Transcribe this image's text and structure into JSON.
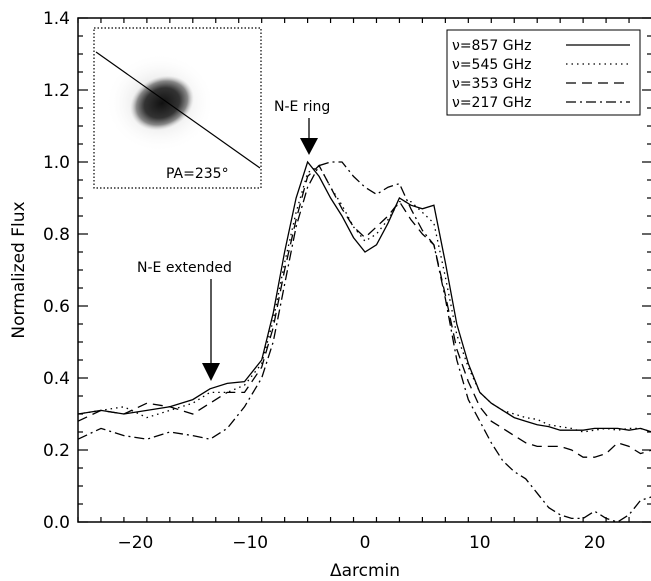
{
  "chart_data": {
    "type": "line",
    "xlabel": "Δarcmin",
    "ylabel": "Normalized Flux",
    "xlim": [
      -25,
      25
    ],
    "ylim": [
      0.0,
      1.4
    ],
    "xticks": [
      -20,
      -10,
      0,
      10,
      20
    ],
    "yticks": [
      0.0,
      0.2,
      0.4,
      0.6,
      0.8,
      1.0,
      1.2,
      1.4
    ],
    "grid": false,
    "legend_position": "top-right",
    "series": [
      {
        "name": "ν=857 GHz",
        "style": "solid",
        "x": [
          -25,
          -23,
          -21,
          -19,
          -17,
          -15,
          -13.5,
          -12,
          -10.5,
          -9,
          -8,
          -7,
          -6,
          -5,
          -4,
          -3,
          -2,
          -1,
          0,
          1,
          2,
          3,
          4,
          5,
          6,
          7,
          8,
          9,
          10,
          11,
          12,
          13,
          14,
          15,
          16,
          17,
          18,
          19,
          20,
          21,
          22,
          23,
          24,
          25
        ],
        "y": [
          0.3,
          0.31,
          0.3,
          0.31,
          0.32,
          0.34,
          0.37,
          0.385,
          0.39,
          0.45,
          0.58,
          0.75,
          0.9,
          1.0,
          0.96,
          0.9,
          0.85,
          0.79,
          0.75,
          0.77,
          0.83,
          0.9,
          0.88,
          0.87,
          0.88,
          0.72,
          0.55,
          0.44,
          0.36,
          0.33,
          0.31,
          0.29,
          0.28,
          0.27,
          0.265,
          0.255,
          0.255,
          0.255,
          0.26,
          0.26,
          0.26,
          0.255,
          0.26,
          0.25
        ]
      },
      {
        "name": "ν=545 GHz",
        "style": "dotted",
        "x": [
          -25,
          -23,
          -21,
          -19,
          -17,
          -15,
          -13.5,
          -12,
          -10.5,
          -9,
          -8,
          -7,
          -6,
          -5,
          -4,
          -3,
          -2,
          -1,
          0,
          1,
          2,
          3,
          4,
          5,
          6,
          7,
          8,
          9,
          10,
          11,
          12,
          13,
          14,
          15,
          16,
          17,
          18,
          19,
          20,
          21,
          22,
          23,
          24,
          25
        ],
        "y": [
          0.3,
          0.31,
          0.32,
          0.29,
          0.31,
          0.33,
          0.36,
          0.36,
          0.38,
          0.44,
          0.56,
          0.72,
          0.86,
          0.97,
          0.99,
          0.93,
          0.88,
          0.82,
          0.78,
          0.8,
          0.84,
          0.89,
          0.89,
          0.86,
          0.83,
          0.68,
          0.52,
          0.43,
          0.36,
          0.33,
          0.31,
          0.3,
          0.29,
          0.285,
          0.27,
          0.265,
          0.26,
          0.25,
          0.255,
          0.26,
          0.255,
          0.26,
          0.26,
          0.25
        ]
      },
      {
        "name": "ν=353 GHz",
        "style": "dashed",
        "x": [
          -25,
          -23,
          -21,
          -19,
          -17,
          -15,
          -13.5,
          -12,
          -10.5,
          -9,
          -8,
          -7,
          -6,
          -5,
          -4,
          -3,
          -2,
          -1,
          0,
          1,
          2,
          3,
          4,
          5,
          6,
          7,
          8,
          9,
          10,
          11,
          12,
          13,
          14,
          15,
          16,
          17,
          18,
          19,
          20,
          21,
          22,
          23,
          24,
          25
        ],
        "y": [
          0.28,
          0.31,
          0.3,
          0.33,
          0.32,
          0.3,
          0.33,
          0.36,
          0.36,
          0.43,
          0.54,
          0.7,
          0.84,
          0.96,
          0.99,
          0.93,
          0.87,
          0.82,
          0.79,
          0.82,
          0.85,
          0.89,
          0.84,
          0.8,
          0.77,
          0.63,
          0.48,
          0.39,
          0.32,
          0.28,
          0.26,
          0.24,
          0.22,
          0.21,
          0.21,
          0.21,
          0.2,
          0.18,
          0.18,
          0.19,
          0.22,
          0.21,
          0.19,
          0.2
        ]
      },
      {
        "name": "ν=217 GHz",
        "style": "dashdot",
        "x": [
          -25,
          -23,
          -21,
          -19,
          -17,
          -15,
          -13.5,
          -12,
          -10.5,
          -9,
          -8,
          -7,
          -6,
          -5,
          -4,
          -3,
          -2,
          -1,
          0,
          1,
          2,
          3,
          4,
          5,
          6,
          7,
          8,
          9,
          10,
          11,
          12,
          13,
          14,
          15,
          16,
          17,
          18,
          19,
          20,
          21,
          22,
          23,
          24,
          25
        ],
        "y": [
          0.23,
          0.26,
          0.24,
          0.23,
          0.25,
          0.24,
          0.23,
          0.26,
          0.32,
          0.4,
          0.5,
          0.66,
          0.82,
          0.93,
          0.99,
          1.0,
          1.0,
          0.96,
          0.93,
          0.91,
          0.93,
          0.94,
          0.87,
          0.81,
          0.77,
          0.62,
          0.45,
          0.34,
          0.28,
          0.22,
          0.17,
          0.14,
          0.12,
          0.08,
          0.04,
          0.02,
          0.01,
          0.01,
          0.03,
          0.01,
          0.0,
          0.02,
          0.06,
          0.07
        ]
      }
    ],
    "annotations": [
      {
        "text": "N-E ring",
        "x": -5,
        "y": 1.0
      },
      {
        "text": "N-E extended",
        "x": -13.5,
        "y": 0.37
      }
    ],
    "inset": {
      "label": "PA=235°"
    }
  }
}
